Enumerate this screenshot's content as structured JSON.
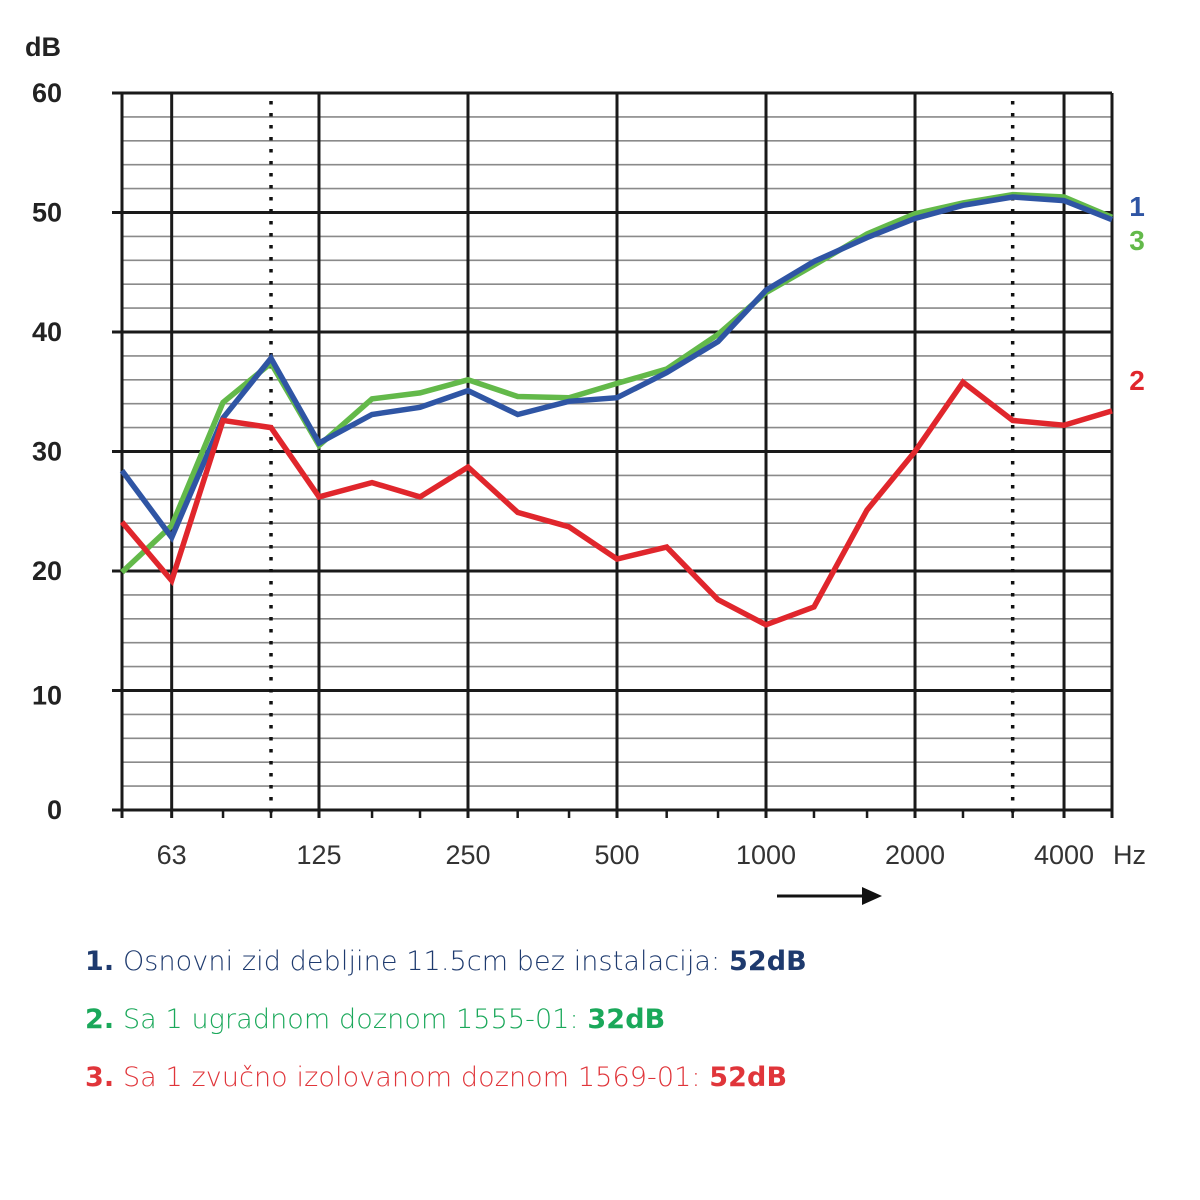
{
  "chart_data": {
    "type": "line",
    "ylabel": "dB",
    "xlabel": "Hz",
    "ylim": [
      0,
      60
    ],
    "yticks": [
      "0",
      "10",
      "20",
      "30",
      "40",
      "50",
      "60"
    ],
    "y_minor_step": 2,
    "x_scale": "log (third-octave bands)",
    "x": [
      50,
      63,
      80,
      100,
      125,
      160,
      200,
      250,
      315,
      400,
      500,
      630,
      800,
      1000,
      1250,
      1600,
      2000,
      2500,
      3150,
      4000,
      5000
    ],
    "xlim": [
      50,
      5000
    ],
    "xticks": [
      "63",
      "125",
      "250",
      "500",
      "1000",
      "2000",
      "4000"
    ],
    "xtick_values": [
      63,
      125,
      250,
      500,
      1000,
      2000,
      4000
    ],
    "dotted_x": [
      100,
      3150
    ],
    "grid": true,
    "arrow": "right",
    "series": [
      {
        "name": "1",
        "color": "#2f55a4",
        "values": [
          28.4,
          22.8,
          32.8,
          37.8,
          30.7,
          33.1,
          33.7,
          35.1,
          33.1,
          34.2,
          34.5,
          36.6,
          39.2,
          43.5,
          45.9,
          47.9,
          49.5,
          50.6,
          51.3,
          51.0,
          49.4
        ]
      },
      {
        "name": "2",
        "color": "#e0262c",
        "values": [
          24.1,
          19.2,
          32.6,
          32.0,
          26.2,
          27.4,
          26.2,
          28.7,
          24.9,
          23.7,
          21.0,
          22.0,
          17.6,
          15.5,
          17.0,
          25.1,
          30.0,
          35.8,
          32.6,
          32.2,
          33.4
        ]
      },
      {
        "name": "3",
        "color": "#63b94a",
        "values": [
          19.9,
          23.8,
          34.1,
          37.4,
          30.5,
          34.4,
          34.9,
          36.0,
          34.6,
          34.5,
          35.7,
          36.9,
          39.8,
          43.3,
          45.6,
          48.2,
          49.9,
          50.8,
          51.5,
          51.3,
          49.6
        ]
      }
    ],
    "series_end_labels": [
      "1",
      "3",
      "2"
    ]
  },
  "legend": [
    {
      "number": "1.",
      "text": "Osnovni zid debljine 11.5cm bez instalacija: ",
      "value": "52dB",
      "color": "#1e3a6e"
    },
    {
      "number": "2.",
      "text": "Sa 1 ugradnom doznom 1555-01: ",
      "value": "32dB",
      "color": "#1aa85a"
    },
    {
      "number": "3.",
      "text": "Sa 1 zvučno izolovanom doznom 1569-01: ",
      "value": "52dB",
      "color": "#e0353a"
    }
  ]
}
